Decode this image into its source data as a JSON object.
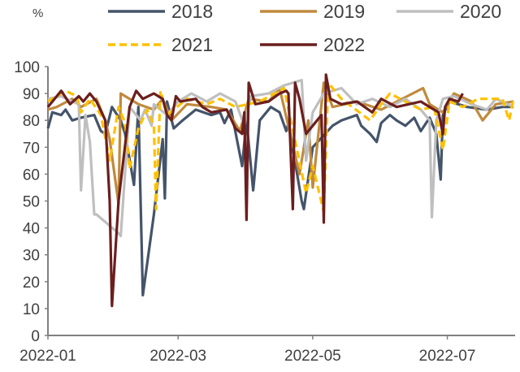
{
  "chart_data": {
    "type": "line",
    "title": "",
    "ylabel": "%",
    "xlabel": "",
    "ylim": [
      0,
      100
    ],
    "yticks": [
      "0",
      "10",
      "20",
      "30",
      "40",
      "50",
      "60",
      "70",
      "80",
      "90",
      "100"
    ],
    "xlim": [
      "2022-01-01",
      "2022-07-31"
    ],
    "xticks": [
      {
        "date": "2022-01-01",
        "label": "2022-01"
      },
      {
        "date": "2022-03-01",
        "label": "2022-03"
      },
      {
        "date": "2022-05-01",
        "label": "2022-05"
      },
      {
        "date": "2022-07-01",
        "label": "2022-07"
      }
    ],
    "grid": false,
    "legend": "top",
    "series": [
      {
        "name": "2018",
        "color": "#44546A",
        "dash": false,
        "points": [
          [
            "2022-01-01",
            77
          ],
          [
            "2022-01-03",
            83
          ],
          [
            "2022-01-07",
            82
          ],
          [
            "2022-01-09",
            84
          ],
          [
            "2022-01-12",
            80
          ],
          [
            "2022-01-16",
            81
          ],
          [
            "2022-01-22",
            82
          ],
          [
            "2022-01-25",
            76
          ],
          [
            "2022-01-27",
            75
          ],
          [
            "2022-01-30",
            85
          ],
          [
            "2022-02-03",
            80
          ],
          [
            "2022-02-05",
            75
          ],
          [
            "2022-02-09",
            56
          ],
          [
            "2022-02-11",
            85
          ],
          [
            "2022-02-13",
            15
          ],
          [
            "2022-02-18",
            45
          ],
          [
            "2022-02-22",
            73
          ],
          [
            "2022-02-23",
            51
          ],
          [
            "2022-02-24",
            87
          ],
          [
            "2022-02-27",
            77
          ],
          [
            "2022-03-03",
            80
          ],
          [
            "2022-03-09",
            84
          ],
          [
            "2022-03-16",
            82
          ],
          [
            "2022-03-20",
            83
          ],
          [
            "2022-03-22",
            79
          ],
          [
            "2022-03-25",
            84
          ],
          [
            "2022-03-30",
            63
          ],
          [
            "2022-04-01",
            80
          ],
          [
            "2022-04-04",
            54
          ],
          [
            "2022-04-07",
            80
          ],
          [
            "2022-04-12",
            85
          ],
          [
            "2022-04-16",
            83
          ],
          [
            "2022-04-19",
            76
          ],
          [
            "2022-04-20",
            79
          ],
          [
            "2022-04-26",
            50
          ],
          [
            "2022-04-27",
            47
          ],
          [
            "2022-05-01",
            70
          ],
          [
            "2022-05-10",
            78
          ],
          [
            "2022-05-14",
            80
          ],
          [
            "2022-05-21",
            82
          ],
          [
            "2022-05-23",
            78
          ],
          [
            "2022-05-27",
            75
          ],
          [
            "2022-05-30",
            72
          ],
          [
            "2022-06-01",
            79
          ],
          [
            "2022-06-05",
            82
          ],
          [
            "2022-06-08",
            80
          ],
          [
            "2022-06-12",
            78
          ],
          [
            "2022-06-16",
            81
          ],
          [
            "2022-06-19",
            76
          ],
          [
            "2022-06-23",
            81
          ],
          [
            "2022-06-26",
            75
          ],
          [
            "2022-06-28",
            58
          ],
          [
            "2022-06-29",
            82
          ],
          [
            "2022-07-02",
            87
          ],
          [
            "2022-07-10",
            85
          ],
          [
            "2022-07-19",
            84
          ],
          [
            "2022-07-26",
            85
          ],
          [
            "2022-07-31",
            85
          ]
        ]
      },
      {
        "name": "2019",
        "color": "#C08A3E",
        "dash": false,
        "points": [
          [
            "2022-01-01",
            84
          ],
          [
            "2022-01-05",
            85
          ],
          [
            "2022-01-12",
            88
          ],
          [
            "2022-01-16",
            85
          ],
          [
            "2022-01-23",
            88
          ],
          [
            "2022-01-27",
            80
          ],
          [
            "2022-01-29",
            73
          ],
          [
            "2022-02-02",
            49
          ],
          [
            "2022-02-03",
            90
          ],
          [
            "2022-02-11",
            86
          ],
          [
            "2022-02-18",
            84
          ],
          [
            "2022-02-22",
            88
          ],
          [
            "2022-02-26",
            80
          ],
          [
            "2022-03-05",
            86
          ],
          [
            "2022-03-16",
            85
          ],
          [
            "2022-03-23",
            84
          ],
          [
            "2022-03-29",
            76
          ],
          [
            "2022-04-02",
            88
          ],
          [
            "2022-04-11",
            87
          ],
          [
            "2022-04-16",
            92
          ],
          [
            "2022-04-25",
            60
          ],
          [
            "2022-04-29",
            80
          ],
          [
            "2022-05-01",
            55
          ],
          [
            "2022-05-06",
            94
          ],
          [
            "2022-05-10",
            85
          ],
          [
            "2022-05-21",
            87
          ],
          [
            "2022-06-01",
            84
          ],
          [
            "2022-06-20",
            92
          ],
          [
            "2022-06-23",
            86
          ],
          [
            "2022-06-29",
            83
          ],
          [
            "2022-07-04",
            90
          ],
          [
            "2022-07-12",
            87
          ],
          [
            "2022-07-17",
            80
          ],
          [
            "2022-07-23",
            86
          ],
          [
            "2022-07-31",
            87
          ]
        ]
      },
      {
        "name": "2020",
        "color": "#BFBFBF",
        "dash": false,
        "points": [
          [
            "2022-01-01",
            88
          ],
          [
            "2022-01-07",
            89
          ],
          [
            "2022-01-12",
            87
          ],
          [
            "2022-01-15",
            86
          ],
          [
            "2022-01-16",
            54
          ],
          [
            "2022-01-18",
            82
          ],
          [
            "2022-01-20",
            72
          ],
          [
            "2022-01-22",
            45
          ],
          [
            "2022-01-23",
            45
          ],
          [
            "2022-02-02",
            38
          ],
          [
            "2022-02-03",
            37
          ],
          [
            "2022-02-07",
            85
          ],
          [
            "2022-02-12",
            80
          ],
          [
            "2022-02-14",
            84
          ],
          [
            "2022-02-17",
            78
          ],
          [
            "2022-02-18",
            86
          ],
          [
            "2022-02-24",
            82
          ],
          [
            "2022-03-01",
            87
          ],
          [
            "2022-03-07",
            90
          ],
          [
            "2022-03-14",
            87
          ],
          [
            "2022-03-20",
            90
          ],
          [
            "2022-03-27",
            87
          ],
          [
            "2022-03-31",
            78
          ],
          [
            "2022-04-03",
            89
          ],
          [
            "2022-04-11",
            90
          ],
          [
            "2022-04-18",
            93
          ],
          [
            "2022-04-26",
            95
          ],
          [
            "2022-04-28",
            65
          ],
          [
            "2022-05-01",
            83
          ],
          [
            "2022-05-06",
            90
          ],
          [
            "2022-05-14",
            92
          ],
          [
            "2022-05-21",
            86
          ],
          [
            "2022-05-28",
            88
          ],
          [
            "2022-06-05",
            85
          ],
          [
            "2022-06-12",
            88
          ],
          [
            "2022-06-19",
            84
          ],
          [
            "2022-06-23",
            80
          ],
          [
            "2022-06-24",
            44
          ],
          [
            "2022-06-26",
            80
          ],
          [
            "2022-06-29",
            88
          ],
          [
            "2022-07-04",
            89
          ],
          [
            "2022-07-12",
            86
          ],
          [
            "2022-07-19",
            84
          ],
          [
            "2022-07-23",
            88
          ],
          [
            "2022-07-31",
            85
          ]
        ]
      },
      {
        "name": "2021",
        "color": "#FFC000",
        "dash": true,
        "points": [
          [
            "2022-01-01",
            87
          ],
          [
            "2022-01-09",
            91
          ],
          [
            "2022-01-14",
            89
          ],
          [
            "2022-01-16",
            83
          ],
          [
            "2022-01-20",
            88
          ],
          [
            "2022-01-25",
            82
          ],
          [
            "2022-01-29",
            65
          ],
          [
            "2022-02-02",
            85
          ],
          [
            "2022-02-05",
            79
          ],
          [
            "2022-02-07",
            62
          ],
          [
            "2022-02-11",
            77
          ],
          [
            "2022-02-15",
            84
          ],
          [
            "2022-02-18",
            78
          ],
          [
            "2022-02-19",
            47
          ],
          [
            "2022-02-21",
            91
          ],
          [
            "2022-02-24",
            82
          ],
          [
            "2022-03-05",
            88
          ],
          [
            "2022-03-14",
            86
          ],
          [
            "2022-03-20",
            88
          ],
          [
            "2022-03-27",
            85
          ],
          [
            "2022-04-07",
            87
          ],
          [
            "2022-04-18",
            92
          ],
          [
            "2022-04-28",
            53
          ],
          [
            "2022-05-01",
            63
          ],
          [
            "2022-05-06",
            46
          ],
          [
            "2022-05-08",
            94
          ],
          [
            "2022-05-14",
            88
          ],
          [
            "2022-05-27",
            80
          ],
          [
            "2022-06-01",
            86
          ],
          [
            "2022-06-05",
            90
          ],
          [
            "2022-06-19",
            84
          ],
          [
            "2022-06-25",
            85
          ],
          [
            "2022-06-29",
            69
          ],
          [
            "2022-07-02",
            87
          ],
          [
            "2022-07-08",
            85
          ],
          [
            "2022-07-15",
            88
          ],
          [
            "2022-07-26",
            88
          ],
          [
            "2022-07-29",
            80
          ],
          [
            "2022-07-31",
            88
          ]
        ]
      },
      {
        "name": "2022",
        "color": "#6B1E1E",
        "dash": false,
        "points": [
          [
            "2022-01-01",
            85
          ],
          [
            "2022-01-07",
            91
          ],
          [
            "2022-01-11",
            86
          ],
          [
            "2022-01-15",
            89
          ],
          [
            "2022-01-17",
            87
          ],
          [
            "2022-01-20",
            90
          ],
          [
            "2022-01-23",
            87
          ],
          [
            "2022-01-27",
            80
          ],
          [
            "2022-01-28",
            65
          ],
          [
            "2022-01-29",
            50
          ],
          [
            "2022-01-30",
            11
          ],
          [
            "2022-02-02",
            50
          ],
          [
            "2022-02-07",
            85
          ],
          [
            "2022-02-10",
            91
          ],
          [
            "2022-02-13",
            88
          ],
          [
            "2022-02-18",
            90
          ],
          [
            "2022-02-22",
            88
          ],
          [
            "2022-02-24",
            82
          ],
          [
            "2022-02-26",
            80
          ],
          [
            "2022-02-28",
            89
          ],
          [
            "2022-03-02",
            87
          ],
          [
            "2022-03-09",
            88
          ],
          [
            "2022-03-12",
            85
          ],
          [
            "2022-03-16",
            83
          ],
          [
            "2022-03-23",
            84
          ],
          [
            "2022-03-27",
            77
          ],
          [
            "2022-03-30",
            75
          ],
          [
            "2022-03-31",
            83
          ],
          [
            "2022-04-01",
            43
          ],
          [
            "2022-04-02",
            94
          ],
          [
            "2022-04-05",
            86
          ],
          [
            "2022-04-11",
            87
          ],
          [
            "2022-04-16",
            90
          ],
          [
            "2022-04-19",
            91
          ],
          [
            "2022-04-20",
            90
          ],
          [
            "2022-04-22",
            47
          ],
          [
            "2022-04-23",
            94
          ],
          [
            "2022-04-25",
            88
          ],
          [
            "2022-04-28",
            75
          ],
          [
            "2022-05-03",
            80
          ],
          [
            "2022-05-05",
            82
          ],
          [
            "2022-05-06",
            42
          ],
          [
            "2022-05-07",
            97
          ],
          [
            "2022-05-09",
            88
          ],
          [
            "2022-05-14",
            86
          ],
          [
            "2022-05-21",
            87
          ],
          [
            "2022-05-28",
            83
          ],
          [
            "2022-06-01",
            88
          ],
          [
            "2022-06-08",
            85
          ],
          [
            "2022-06-19",
            87
          ],
          [
            "2022-06-23",
            85
          ],
          [
            "2022-06-27",
            83
          ],
          [
            "2022-06-29",
            75
          ],
          [
            "2022-06-30",
            85
          ],
          [
            "2022-07-02",
            88
          ],
          [
            "2022-07-06",
            87
          ],
          [
            "2022-07-08",
            90
          ]
        ]
      }
    ]
  }
}
